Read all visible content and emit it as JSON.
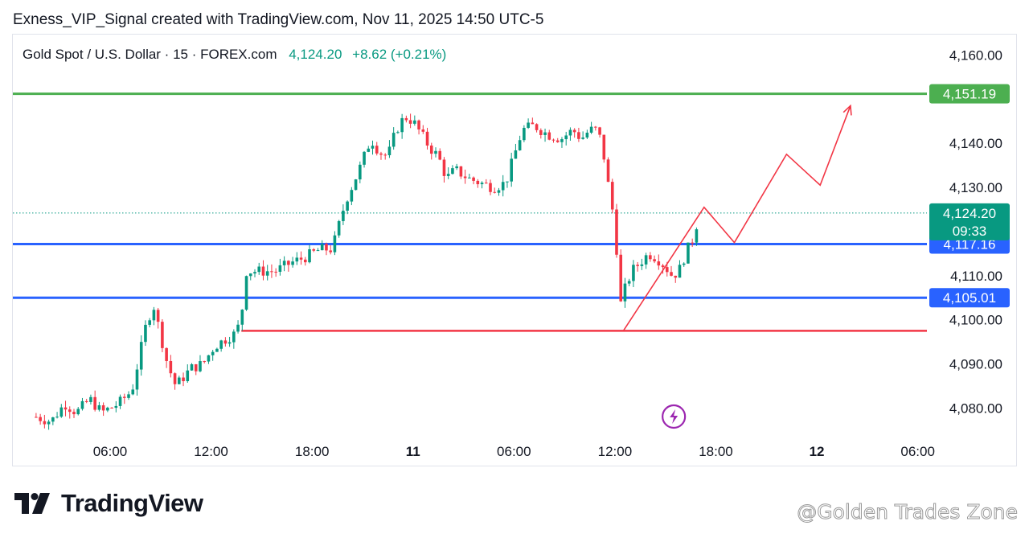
{
  "header": {
    "text": "Exness_VIP_Signal created with TradingView.com, Nov 11, 2025 14:50 UTC-5"
  },
  "legend": {
    "symbol": "Gold Spot / U.S. Dollar · 15 · FOREX.com",
    "price": "4,124.20",
    "change": "+8.62 (+0.21%)"
  },
  "branding": {
    "logo_text": "TradingView",
    "watermark": "@Golden Trades Zone"
  },
  "chart_data": {
    "type": "candlestick",
    "symbol": "Gold Spot / U.S. Dollar",
    "interval": "15",
    "source": "FOREX.com",
    "ylim": [
      4075,
      4168
    ],
    "y_ticks": [
      "4,160.00",
      "4,140.00",
      "4,130.00",
      "4,110.00",
      "4,100.00",
      "4,090.00",
      "4,080.00"
    ],
    "y_tick_values": [
      4160,
      4140,
      4130,
      4110,
      4100,
      4090,
      4080
    ],
    "x_ticks": [
      {
        "label": "06:00",
        "bold": false
      },
      {
        "label": "12:00",
        "bold": false
      },
      {
        "label": "18:00",
        "bold": false
      },
      {
        "label": "11",
        "bold": true
      },
      {
        "label": "06:00",
        "bold": false
      },
      {
        "label": "12:00",
        "bold": false
      },
      {
        "label": "18:00",
        "bold": false
      },
      {
        "label": "12",
        "bold": true
      },
      {
        "label": "06:00",
        "bold": false
      }
    ],
    "x_tick_hours": [
      6,
      12,
      18,
      24,
      30,
      36,
      42,
      48,
      54
    ],
    "x_range_hours": [
      1.5,
      57
    ],
    "candle_anchors": [
      [
        1.6,
        4078
      ],
      [
        2.5,
        4077
      ],
      [
        3.3,
        4081
      ],
      [
        4.0,
        4079
      ],
      [
        4.8,
        4082
      ],
      [
        5.5,
        4079
      ],
      [
        6.5,
        4081
      ],
      [
        7.3,
        4084
      ],
      [
        8.2,
        4100
      ],
      [
        8.6,
        4103
      ],
      [
        9.4,
        4090
      ],
      [
        9.9,
        4085
      ],
      [
        10.8,
        4089
      ],
      [
        11.5,
        4090
      ],
      [
        12.2,
        4094
      ],
      [
        13.0,
        4096
      ],
      [
        13.5,
        4097
      ],
      [
        13.8,
        4101
      ],
      [
        14.1,
        4111
      ],
      [
        14.5,
        4111
      ],
      [
        15.0,
        4111
      ],
      [
        15.8,
        4111
      ],
      [
        16.8,
        4113
      ],
      [
        17.5,
        4114
      ],
      [
        18.5,
        4116
      ],
      [
        19.2,
        4116
      ],
      [
        20.0,
        4127
      ],
      [
        20.8,
        4134
      ],
      [
        21.5,
        4141
      ],
      [
        22.0,
        4138
      ],
      [
        22.5,
        4137
      ],
      [
        23.0,
        4143
      ],
      [
        23.5,
        4146
      ],
      [
        24.0,
        4145
      ],
      [
        24.5,
        4142
      ],
      [
        25.0,
        4139
      ],
      [
        25.5,
        4137
      ],
      [
        26.0,
        4132
      ],
      [
        26.5,
        4134
      ],
      [
        27.3,
        4132
      ],
      [
        28.0,
        4131
      ],
      [
        28.8,
        4130
      ],
      [
        29.5,
        4131
      ],
      [
        30.0,
        4137
      ],
      [
        30.5,
        4143
      ],
      [
        31.2,
        4144
      ],
      [
        32.0,
        4142
      ],
      [
        32.8,
        4141
      ],
      [
        33.5,
        4143
      ],
      [
        34.0,
        4141
      ],
      [
        34.5,
        4143
      ],
      [
        35.0,
        4143
      ],
      [
        35.4,
        4136
      ],
      [
        35.7,
        4128
      ],
      [
        35.9,
        4124
      ],
      [
        36.1,
        4116
      ],
      [
        36.3,
        4103
      ],
      [
        36.6,
        4107
      ],
      [
        37.0,
        4111
      ],
      [
        37.5,
        4113
      ],
      [
        38.0,
        4115
      ],
      [
        38.5,
        4114
      ],
      [
        39.0,
        4112
      ],
      [
        39.4,
        4110
      ],
      [
        39.8,
        4111
      ],
      [
        40.2,
        4115
      ],
      [
        40.7,
        4119
      ],
      [
        41.0,
        4124
      ]
    ],
    "last_price": 4124.2,
    "countdown": "09:33",
    "levels": [
      {
        "price": 4151.19,
        "label": "4,151.19",
        "color": "#4caf50",
        "style": "solid-thick"
      },
      {
        "price": 4117.16,
        "label": "4,117.16",
        "color": "#2962ff",
        "style": "solid-thick"
      },
      {
        "price": 4105.01,
        "label": "4,105.01",
        "color": "#2962ff",
        "style": "solid-thick"
      },
      {
        "price": 4097.5,
        "label": "",
        "color": "#f23645",
        "style": "solid",
        "from_hour": 13.8
      }
    ],
    "current_price_line": {
      "price": 4124.2,
      "label": "4,124.20",
      "color": "#089981",
      "style": "dotted"
    },
    "projection_path": [
      [
        36.5,
        4097.5
      ],
      [
        41.3,
        4125.5
      ],
      [
        43.1,
        4117.5
      ],
      [
        46.2,
        4137.5
      ],
      [
        48.2,
        4130.5
      ],
      [
        50.0,
        4148.5
      ]
    ],
    "colors": {
      "up": "#089981",
      "down": "#f23645",
      "projection": "#f23645"
    },
    "lightning_marker_hour": 39.5
  }
}
